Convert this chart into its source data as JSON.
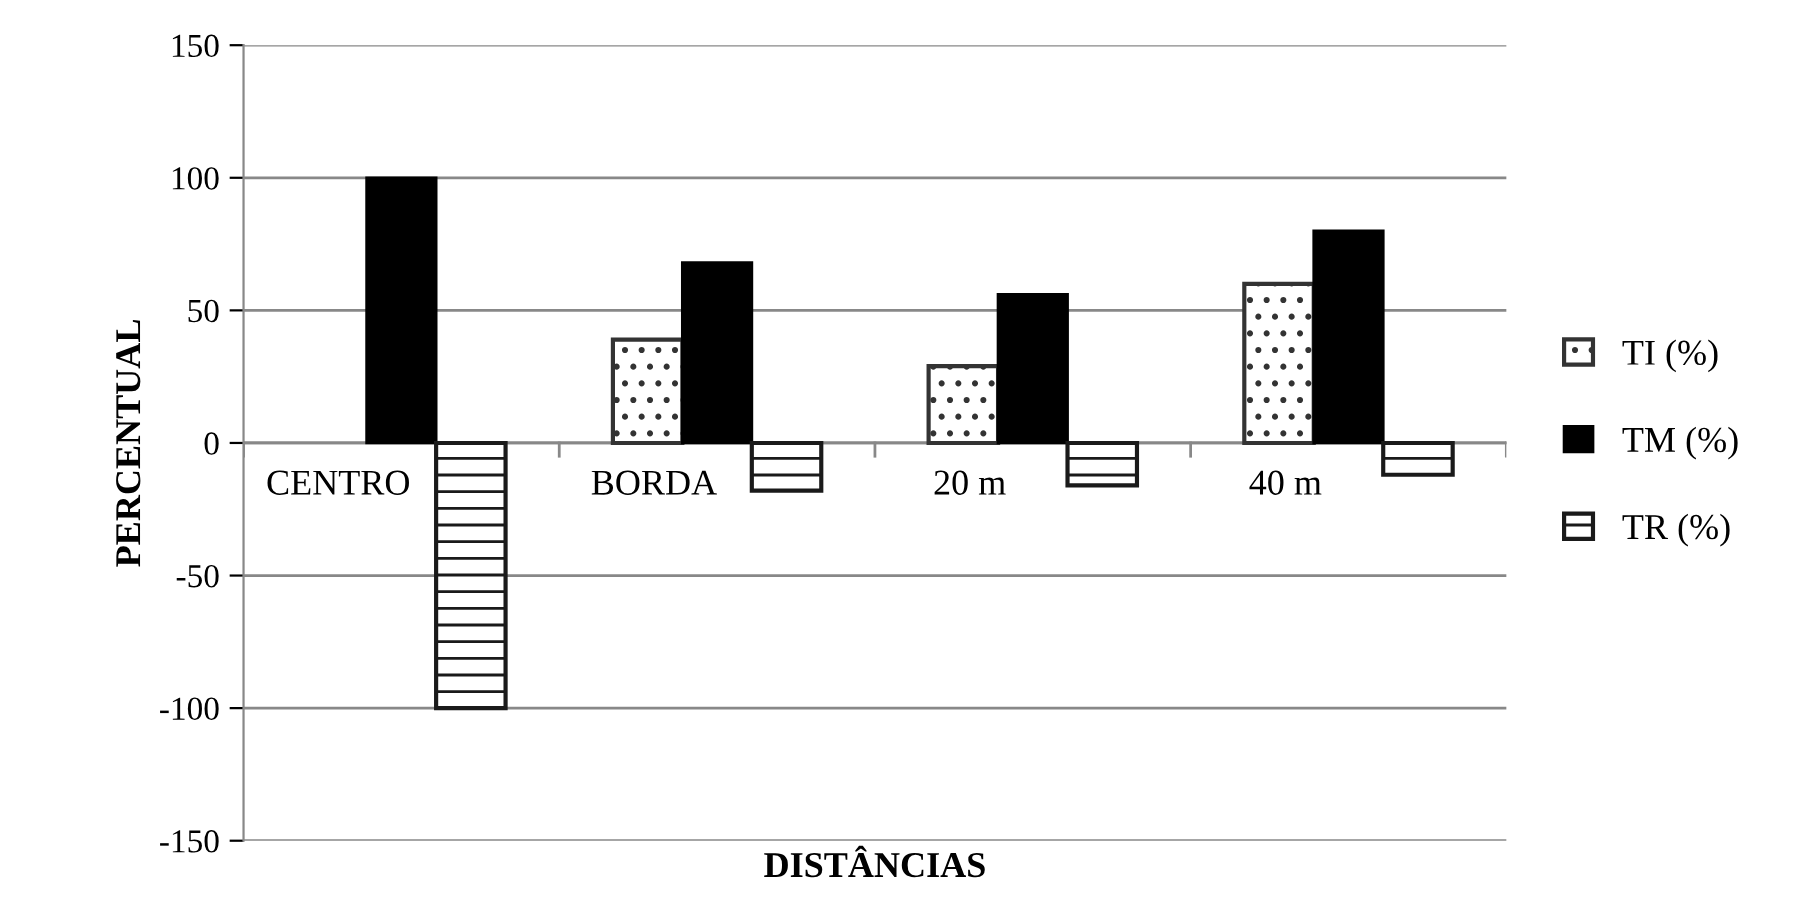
{
  "chart_data": {
    "type": "bar",
    "xlabel": "DISTÂNCIAS",
    "ylabel": "PERCENTUAL",
    "categories": [
      "CENTRO",
      "BORDA",
      "20 m",
      "40 m"
    ],
    "series": [
      {
        "name": "TI (%)",
        "color": "#333333",
        "values": [
          null,
          39,
          29,
          60
        ]
      },
      {
        "name": "TM (%)",
        "color": "#000000",
        "values": [
          100,
          68,
          56,
          80
        ]
      },
      {
        "name": "TR (%)",
        "color": "#1a1a1a",
        "values": [
          -100,
          -18,
          -16,
          -12
        ]
      }
    ],
    "ylim": [
      -150,
      150
    ],
    "yticks": [
      -150,
      -100,
      -50,
      0,
      50,
      100,
      150
    ],
    "grid": "y",
    "legend": "right"
  }
}
